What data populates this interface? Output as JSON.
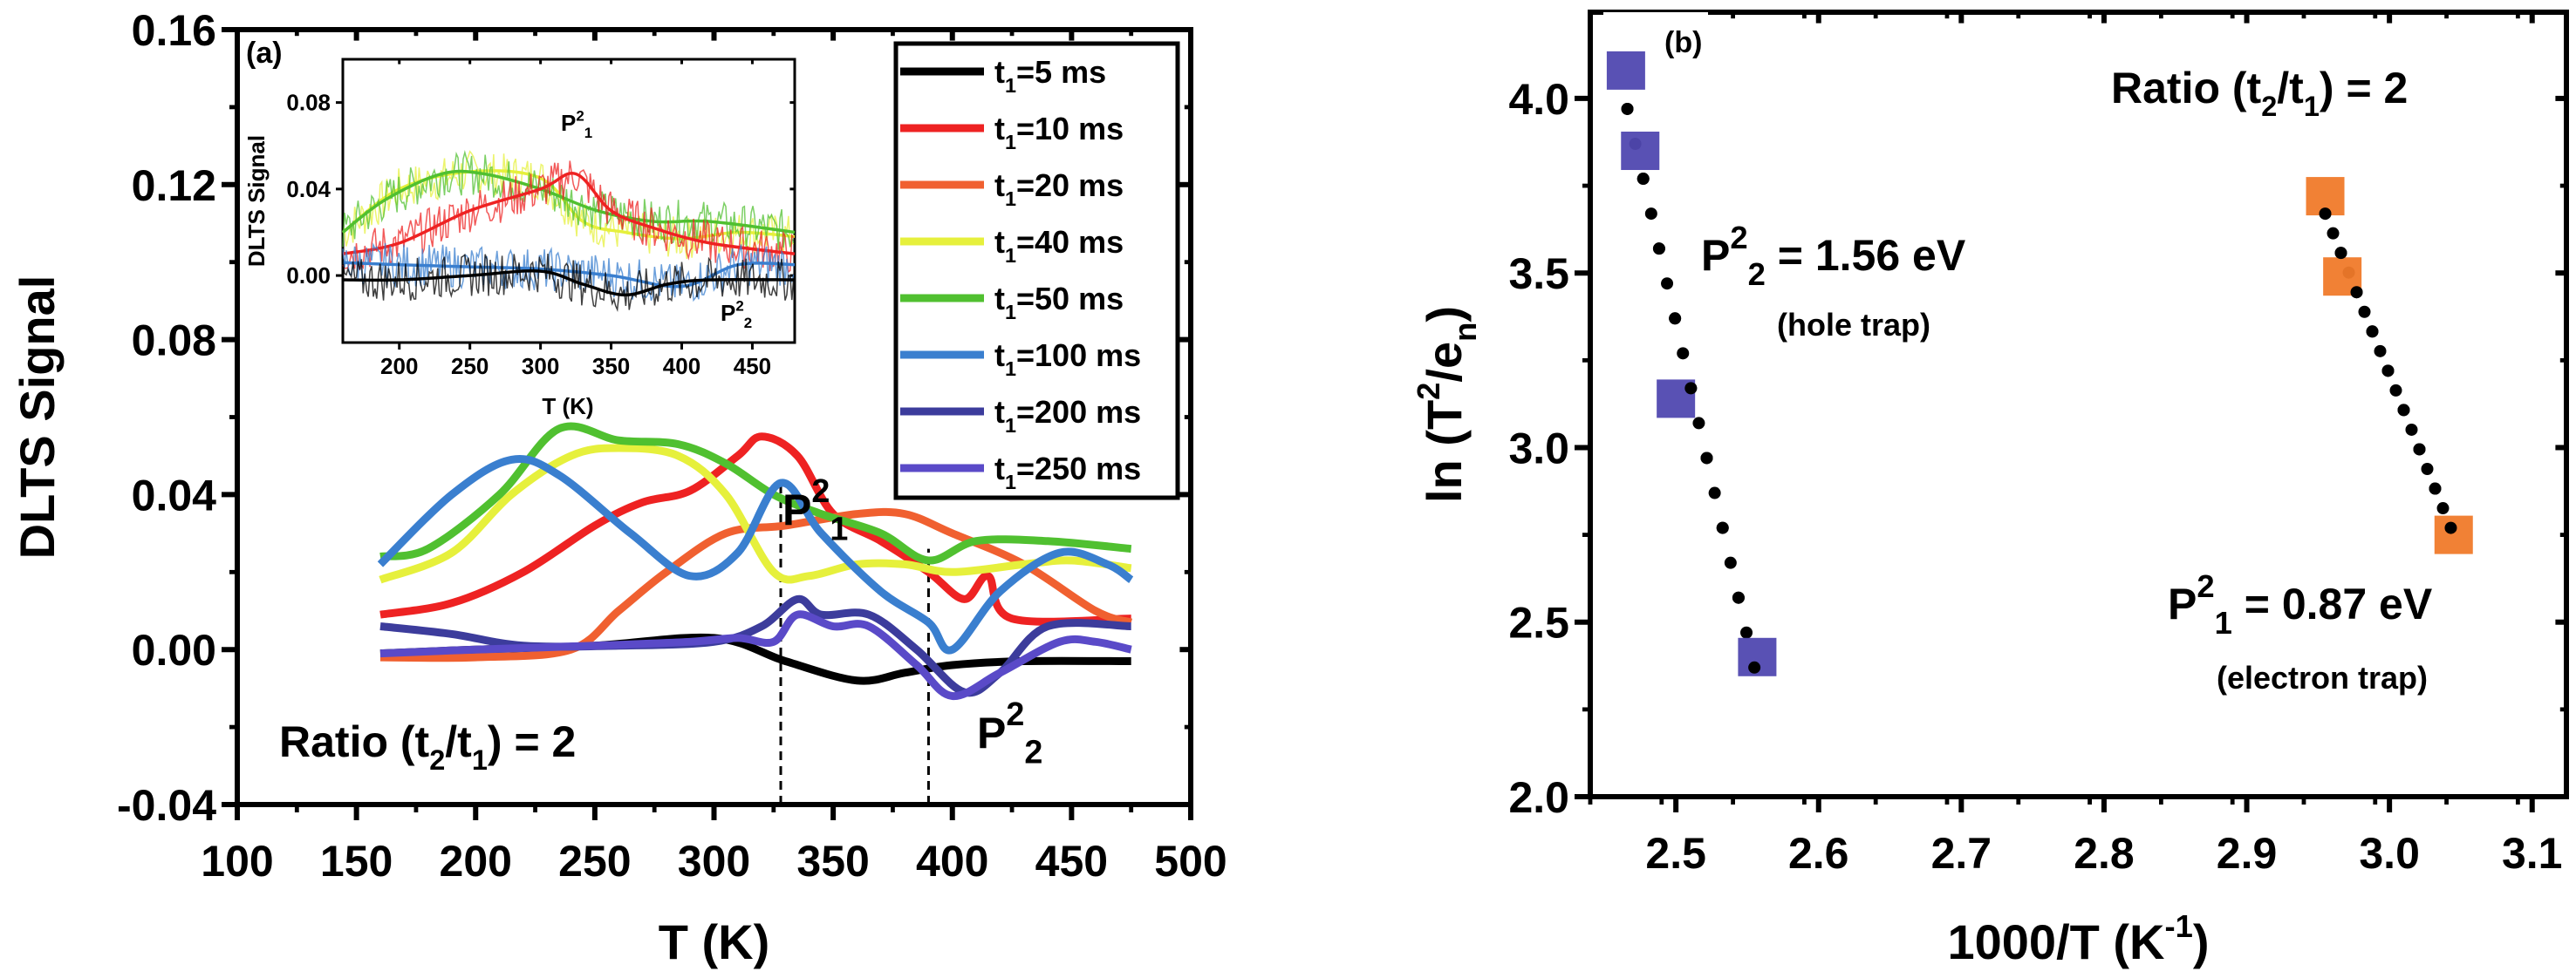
{
  "chart_data": [
    {
      "type": "line",
      "panel_label": "(a)",
      "xlabel": "T (K)",
      "ylabel": "DLTS Signal",
      "xlim": [
        100,
        500
      ],
      "ylim": [
        -0.04,
        0.16
      ],
      "xticks": [
        "100",
        "150",
        "200",
        "250",
        "300",
        "350",
        "400",
        "450",
        "500"
      ],
      "yticks": [
        "-0.04",
        "0.00",
        "0.04",
        "0.08",
        "0.12",
        "0.16"
      ],
      "legend_position": "top-right",
      "annotations": {
        "ratio": {
          "pre": "Ratio (t",
          "sub1": "2",
          "mid": "/t",
          "sub2": "1",
          "post": ") = 2"
        },
        "p1": {
          "base": "P",
          "sup": "2",
          "sub": "1"
        },
        "p2": {
          "base": "P",
          "sup": "2",
          "sub": "2"
        },
        "dashed_lines_T": [
          328,
          390
        ]
      },
      "series": [
        {
          "name": "t1=5 ms",
          "label": {
            "t": "t",
            "sub": "1",
            "rest": "=5 ms"
          },
          "color": "#000000",
          "x": [
            160,
            200,
            250,
            300,
            330,
            360,
            380,
            400,
            430,
            475
          ],
          "y": [
            -0.001,
            0.0,
            0.001,
            0.003,
            -0.003,
            -0.008,
            -0.006,
            -0.004,
            -0.003,
            -0.003
          ]
        },
        {
          "name": "t1=10 ms",
          "label": {
            "t": "t",
            "sub": "1",
            "rest": "=10 ms"
          },
          "color": "#ee2222",
          "x": [
            160,
            190,
            220,
            250,
            270,
            290,
            310,
            320,
            335,
            350,
            370,
            390,
            405,
            415,
            425,
            475
          ],
          "y": [
            0.009,
            0.012,
            0.02,
            0.032,
            0.038,
            0.041,
            0.05,
            0.055,
            0.05,
            0.035,
            0.028,
            0.02,
            0.013,
            0.019,
            0.008,
            0.008
          ]
        },
        {
          "name": "t1=20 ms",
          "label": {
            "t": "t",
            "sub": "1",
            "rest": "=20 ms"
          },
          "color": "#f06030",
          "x": [
            160,
            200,
            240,
            260,
            280,
            305,
            330,
            360,
            380,
            400,
            430,
            460,
            475
          ],
          "y": [
            -0.002,
            -0.002,
            0.0,
            0.01,
            0.02,
            0.03,
            0.032,
            0.035,
            0.035,
            0.03,
            0.022,
            0.01,
            0.007
          ]
        },
        {
          "name": "t1=40 ms",
          "label": {
            "t": "t",
            "sub": "1",
            "rest": "=40 ms"
          },
          "color": "#e6f03c",
          "x": [
            160,
            190,
            215,
            240,
            260,
            285,
            305,
            325,
            340,
            360,
            380,
            400,
            430,
            450,
            475
          ],
          "y": [
            0.018,
            0.025,
            0.04,
            0.05,
            0.052,
            0.05,
            0.04,
            0.02,
            0.019,
            0.022,
            0.022,
            0.02,
            0.022,
            0.023,
            0.021
          ]
        },
        {
          "name": "t1=50 ms",
          "label": {
            "t": "t",
            "sub": "1",
            "rest": "=50 ms"
          },
          "color": "#50c030",
          "x": [
            160,
            180,
            210,
            235,
            260,
            285,
            305,
            325,
            345,
            370,
            390,
            410,
            440,
            475
          ],
          "y": [
            0.024,
            0.026,
            0.04,
            0.057,
            0.054,
            0.053,
            0.048,
            0.04,
            0.035,
            0.03,
            0.023,
            0.028,
            0.028,
            0.026
          ]
        },
        {
          "name": "t1=100 ms",
          "label": {
            "t": "t",
            "sub": "1",
            "rest": "=100 ms"
          },
          "color": "#3a7fcf",
          "x": [
            160,
            190,
            215,
            235,
            265,
            290,
            310,
            328,
            345,
            370,
            390,
            400,
            420,
            445,
            465,
            475
          ],
          "y": [
            0.022,
            0.04,
            0.049,
            0.045,
            0.03,
            0.019,
            0.025,
            0.043,
            0.03,
            0.015,
            0.007,
            0.0,
            0.015,
            0.025,
            0.022,
            0.018
          ]
        },
        {
          "name": "t1=200 ms",
          "label": {
            "t": "t",
            "sub": "1",
            "rest": "=200 ms"
          },
          "color": "#3c3c9c",
          "x": [
            160,
            190,
            220,
            260,
            300,
            320,
            335,
            345,
            365,
            385,
            405,
            420,
            440,
            475
          ],
          "y": [
            0.006,
            0.004,
            0.001,
            0.001,
            0.002,
            0.006,
            0.013,
            0.009,
            0.009,
            0.0,
            -0.011,
            -0.006,
            0.006,
            0.006
          ]
        },
        {
          "name": "t1=250 ms",
          "label": {
            "t": "t",
            "sub": "1",
            "rest": "=250 ms"
          },
          "color": "#5a4ac8",
          "x": [
            160,
            200,
            250,
            290,
            310,
            325,
            335,
            350,
            365,
            385,
            400,
            420,
            445,
            460,
            475
          ],
          "y": [
            -0.001,
            0.0,
            0.001,
            0.002,
            0.003,
            0.002,
            0.009,
            0.006,
            0.006,
            -0.004,
            -0.012,
            -0.006,
            0.002,
            0.002,
            0.0
          ]
        }
      ],
      "inset": {
        "ylabel": "DLTS Signal",
        "xlabel": "T (K)",
        "xlim": [
          160,
          480
        ],
        "ylim": [
          -0.031,
          0.1
        ],
        "xticks": [
          "200",
          "250",
          "300",
          "350",
          "400",
          "450"
        ],
        "yticks": [
          "0.00",
          "0.04",
          "0.08"
        ],
        "annotations": {
          "p1": {
            "base": "P",
            "sup": "2",
            "sub": "1"
          },
          "p2": {
            "base": "P",
            "sup": "2",
            "sub": "2"
          }
        },
        "series": [
          {
            "color": "#e6f03c",
            "x": [
              160,
              200,
              250,
              300,
              330,
              360,
              400,
              440,
              480
            ],
            "y": [
              0.02,
              0.04,
              0.048,
              0.045,
              0.025,
              0.02,
              0.017,
              0.02,
              0.018
            ]
          },
          {
            "color": "#50c030",
            "x": [
              160,
              190,
              230,
              260,
              300,
              340,
              380,
              420,
              480
            ],
            "y": [
              0.02,
              0.035,
              0.047,
              0.047,
              0.04,
              0.03,
              0.025,
              0.025,
              0.02
            ]
          },
          {
            "color": "#ee2222",
            "x": [
              160,
              200,
              250,
              300,
              325,
              350,
              380,
              420,
              480
            ],
            "y": [
              0.01,
              0.015,
              0.03,
              0.04,
              0.047,
              0.03,
              0.022,
              0.015,
              0.01
            ]
          },
          {
            "color": "#3a7fcf",
            "x": [
              160,
              200,
              250,
              300,
              350,
              400,
              440,
              480
            ],
            "y": [
              0.006,
              0.005,
              0.004,
              0.003,
              0.0,
              -0.005,
              0.005,
              0.005
            ]
          },
          {
            "color": "#000000",
            "x": [
              160,
              200,
              250,
              300,
              330,
              360,
              390,
              420,
              480
            ],
            "y": [
              -0.002,
              -0.002,
              0.0,
              0.002,
              -0.004,
              -0.009,
              -0.004,
              -0.002,
              -0.002
            ]
          }
        ]
      }
    },
    {
      "type": "scatter",
      "panel_label": "(b)",
      "xlabel": {
        "pre": "1000/T (K",
        "sup": "-1",
        "post": ")"
      },
      "ylabel": {
        "pre": "ln (T",
        "sup": "2",
        "mid": "/e",
        "sub": "n",
        "post": ")"
      },
      "xlim": [
        2.44,
        3.124
      ],
      "ylim": [
        2.0,
        4.247
      ],
      "xticks": [
        "2.5",
        "2.6",
        "2.7",
        "2.8",
        "2.9",
        "3.0",
        "3.1"
      ],
      "yticks": [
        "2.0",
        "2.5",
        "3.0",
        "3.5",
        "4.0"
      ],
      "annotations": {
        "ratio": {
          "pre": "Ratio (t",
          "sub1": "2",
          "mid": "/t",
          "sub2": "1",
          "post": ") = 2"
        },
        "hole": {
          "base": "P",
          "sup": "2",
          "sub": "2",
          "value": " = 1.56 eV",
          "note": "(hole trap)"
        },
        "electron": {
          "base": "P",
          "sup": "2",
          "sub": "1",
          "value": " = 0.87 eV",
          "note": "(electron trap)"
        }
      },
      "series": [
        {
          "color": "#5048b0",
          "x": [
            2.465,
            2.475,
            2.5,
            2.557
          ],
          "y": [
            4.08,
            3.85,
            3.14,
            2.4
          ],
          "fit": {
            "x": [
              2.466,
              2.555
            ],
            "y": [
              3.97,
              2.37
            ]
          }
        },
        {
          "color": "#f07a2a",
          "x": [
            2.955,
            2.967,
            3.045
          ],
          "y": [
            3.72,
            3.49,
            2.75
          ],
          "fit": {
            "x": [
              2.955,
              3.043
            ],
            "y": [
              3.67,
              2.77
            ]
          }
        }
      ]
    }
  ]
}
